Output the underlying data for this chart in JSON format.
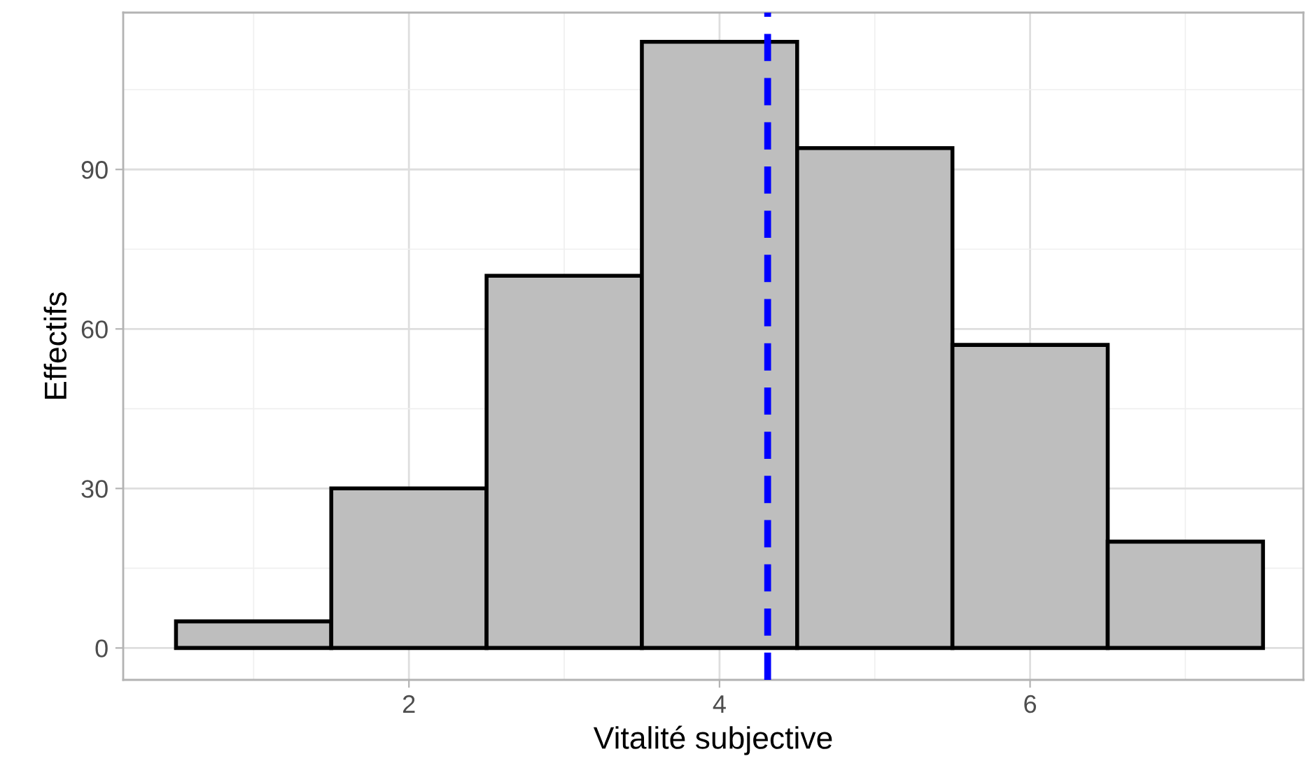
{
  "chart_data": {
    "type": "histogram",
    "xlabel": "Vitalité subjective",
    "ylabel": "Effectifs",
    "bins": [
      0.5,
      1.5,
      2.5,
      3.5,
      4.5,
      5.5,
      6.5,
      7.5
    ],
    "values": [
      5,
      30,
      70,
      114,
      94,
      57,
      20
    ],
    "color": "#bebebe",
    "xlim": [
      0.16,
      7.76
    ],
    "ylim": [
      -6,
      119.5
    ],
    "xticks": [
      2,
      4,
      6
    ],
    "yticks": [
      0,
      30,
      60,
      90
    ],
    "grid": true,
    "ref_lines": [
      {
        "axis": "x",
        "value": 4.31,
        "color": "#0000ff",
        "line_style": "dashed"
      }
    ]
  }
}
